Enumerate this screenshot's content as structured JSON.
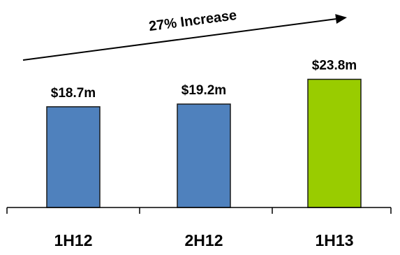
{
  "chart_data": {
    "type": "bar",
    "categories": [
      "1H12",
      "2H12",
      "1H13"
    ],
    "values": [
      18.7,
      19.2,
      23.8
    ],
    "data_labels": [
      "$18.7m",
      "$19.2m",
      "$23.8m"
    ],
    "bar_colors": [
      "#4F81BD",
      "#4F81BD",
      "#99CC00"
    ],
    "ylim": [
      0,
      28
    ],
    "grid": false,
    "legend": "none",
    "annotation": {
      "text": "27% Increase",
      "type": "arrow"
    }
  }
}
